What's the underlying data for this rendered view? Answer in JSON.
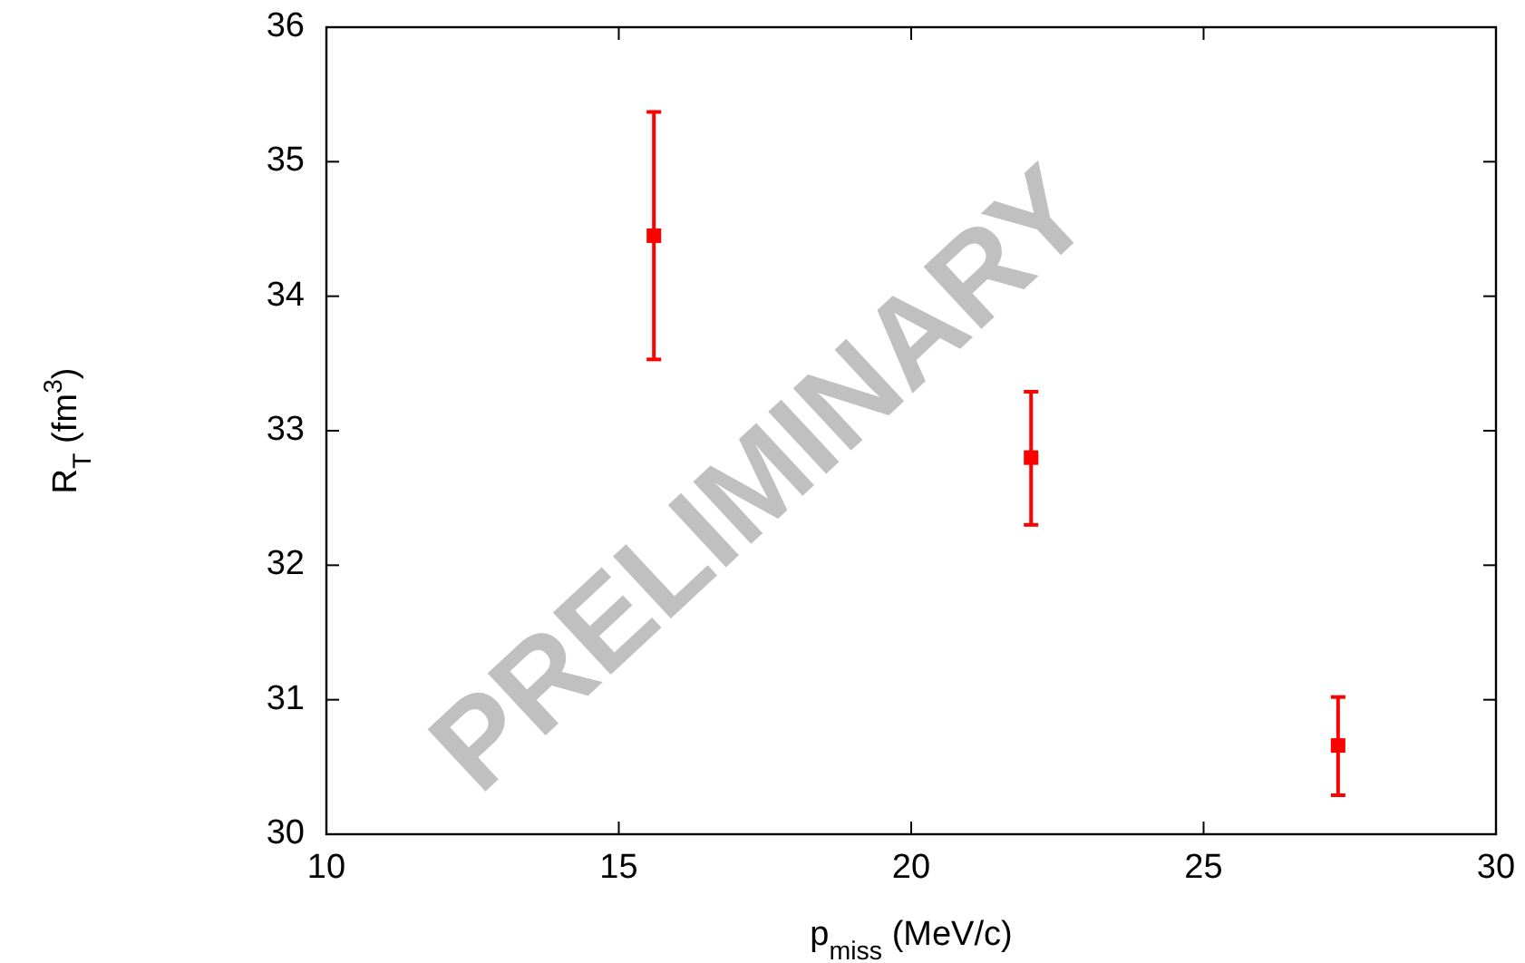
{
  "chart_data": {
    "type": "scatter",
    "xlabel": "p$_{miss}$ (MeV/c)",
    "ylabel": "R$_{T}$ (fm$^{3}$)",
    "x": [
      15.6,
      22.05,
      27.3
    ],
    "values": [
      34.45,
      32.8,
      30.66
    ],
    "errors": [
      [
        33.53,
        35.37
      ],
      [
        32.3,
        33.29
      ],
      [
        30.29,
        31.02
      ]
    ],
    "color": "#ff0000",
    "marker": "square",
    "xlim": [
      10,
      30
    ],
    "xticks": [
      10,
      15,
      20,
      25,
      30
    ],
    "ylim": [
      30,
      36
    ],
    "yticks": [
      30,
      31,
      32,
      33,
      34,
      35,
      36
    ],
    "annotations": [
      "PRELIMINARY"
    ]
  }
}
